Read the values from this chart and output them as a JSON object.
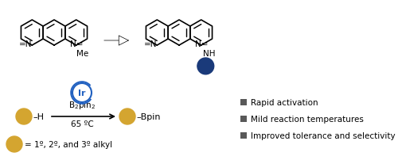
{
  "background_color": "#ffffff",
  "gold_color": "#D4A530",
  "blue_dark": "#1a3a7a",
  "blue_circle": "#2060c0",
  "gray_square": "#595959",
  "bullet_items": [
    "Rapid activation",
    "Mild reaction temperatures",
    "Improved tolerance and selectivity"
  ]
}
